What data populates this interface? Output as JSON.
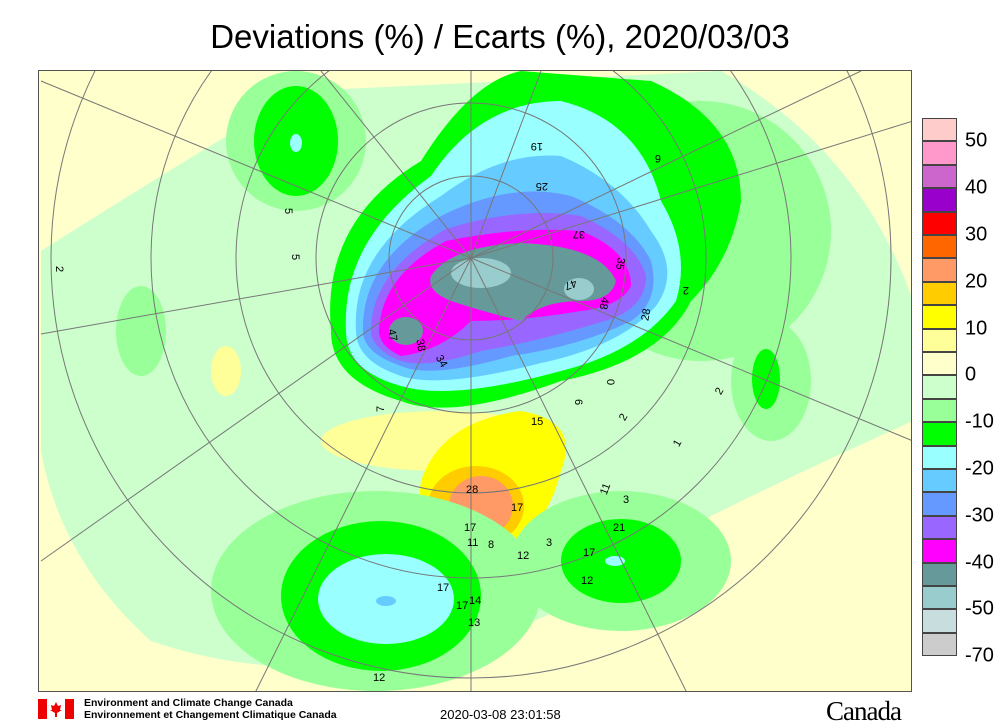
{
  "title": "Deviations (%) / Ecarts (%), 2020/03/03",
  "legend": {
    "colors": [
      "#ffcccc",
      "#ff99cc",
      "#cc66cc",
      "#9900cc",
      "#ff0000",
      "#ff6600",
      "#ff9966",
      "#ffcc00",
      "#ffff00",
      "#ffff99",
      "#ffffcc",
      "#ccffcc",
      "#99ff99",
      "#00ff00",
      "#99ffff",
      "#66ccff",
      "#6699ff",
      "#9966ff",
      "#ff00ff",
      "#669999",
      "#99cccc",
      "#c8dede",
      "#cccccc"
    ],
    "labels": [
      "50",
      "40",
      "30",
      "20",
      "10",
      "0",
      "-10",
      "-20",
      "-30",
      "-40",
      "-50",
      "-70"
    ]
  },
  "stations": [
    "19",
    "25",
    "37",
    "35",
    "47",
    "48",
    "28",
    "47",
    "38",
    "34",
    "6",
    "0",
    "6",
    "2",
    "15",
    "2",
    "28",
    "17",
    "11",
    "8",
    "12",
    "17",
    "11",
    "3",
    "3",
    "17",
    "21",
    "12",
    "17",
    "17",
    "14",
    "13",
    "12",
    "2",
    "5",
    "7",
    "5",
    "2",
    "1"
  ],
  "footer": {
    "org_en": "Environment and Climate Change Canada",
    "org_fr": "Environnement et Changement Climatique Canada",
    "timestamp": "2020-03-08 23:01:58",
    "wordmark": "Canada"
  }
}
